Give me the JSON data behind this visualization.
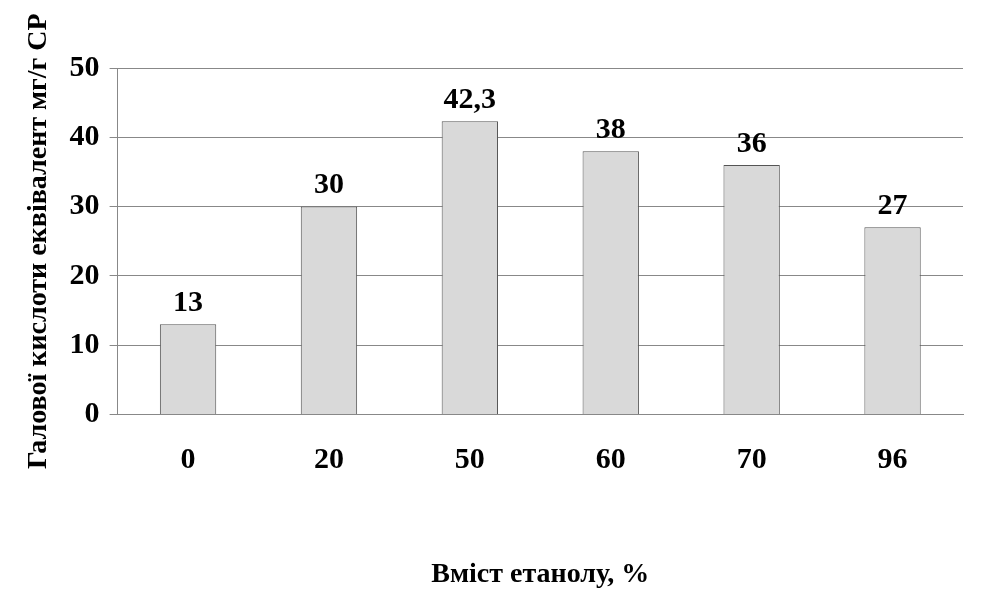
{
  "chart_data": {
    "type": "bar",
    "xlabel": "Вміст етанолу, %",
    "ylabel": "Галової кислоти еквівалент мг/г СР",
    "categories": [
      "0",
      "20",
      "50",
      "60",
      "70",
      "96"
    ],
    "values": [
      13,
      30,
      42.3,
      38,
      36,
      27
    ],
    "value_labels": [
      "13",
      "30",
      "42,3",
      "38",
      "36",
      "27"
    ],
    "color": "#d9d9d9",
    "ylim": [
      0,
      50
    ],
    "yticks": [
      0,
      10,
      20,
      30,
      40,
      50
    ],
    "grid": "y",
    "legend": false
  }
}
